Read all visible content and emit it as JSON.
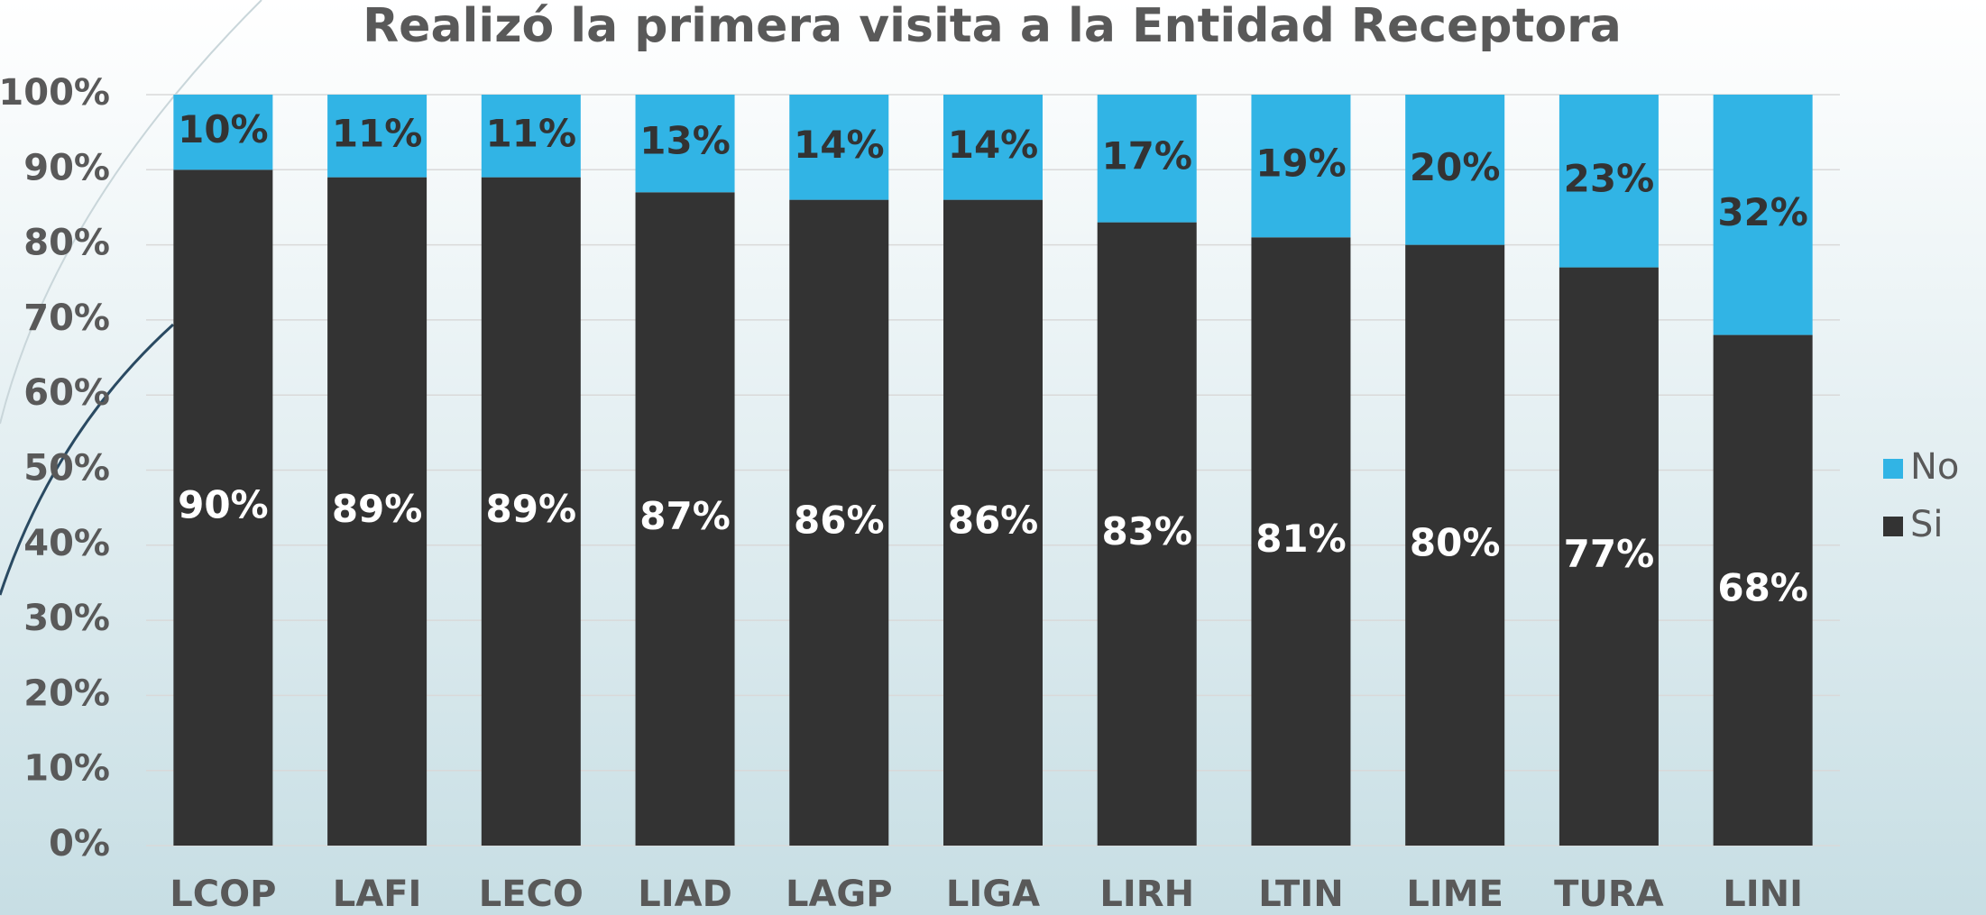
{
  "chart_data": {
    "type": "stacked_bar",
    "title": "Realizó la primera visita a la Entidad Receptora",
    "categories": [
      "LCOP",
      "LAFI",
      "LECO",
      "LIAD",
      "LAGP",
      "LIGA",
      "LIRH",
      "LTIN",
      "LIME",
      "TURA",
      "LINI"
    ],
    "series": [
      {
        "name": "Si",
        "color": "#333333",
        "values": [
          90,
          89,
          89,
          87,
          86,
          86,
          83,
          81,
          80,
          77,
          68
        ],
        "value_labels": [
          "90%",
          "89%",
          "89%",
          "87%",
          "86%",
          "86%",
          "83%",
          "81%",
          "80%",
          "77%",
          "68%"
        ]
      },
      {
        "name": "No",
        "color": "#31b4e5",
        "values": [
          10,
          11,
          11,
          13,
          14,
          14,
          17,
          19,
          20,
          23,
          32
        ],
        "value_labels": [
          "10%",
          "11%",
          "11%",
          "13%",
          "14%",
          "14%",
          "17%",
          "19%",
          "20%",
          "23%",
          "32%"
        ]
      }
    ],
    "ylim": [
      0,
      100
    ],
    "yticks": [
      {
        "value": 0,
        "label": "0%"
      },
      {
        "value": 10,
        "label": "10%"
      },
      {
        "value": 20,
        "label": "20%"
      },
      {
        "value": 30,
        "label": "30%"
      },
      {
        "value": 40,
        "label": "40%"
      },
      {
        "value": 50,
        "label": "50%"
      },
      {
        "value": 60,
        "label": "60%"
      },
      {
        "value": 70,
        "label": "70%"
      },
      {
        "value": 80,
        "label": "80%"
      },
      {
        "value": 90,
        "label": "90%"
      },
      {
        "value": 100,
        "label": "100%"
      }
    ],
    "grid": true,
    "legend": "right"
  }
}
